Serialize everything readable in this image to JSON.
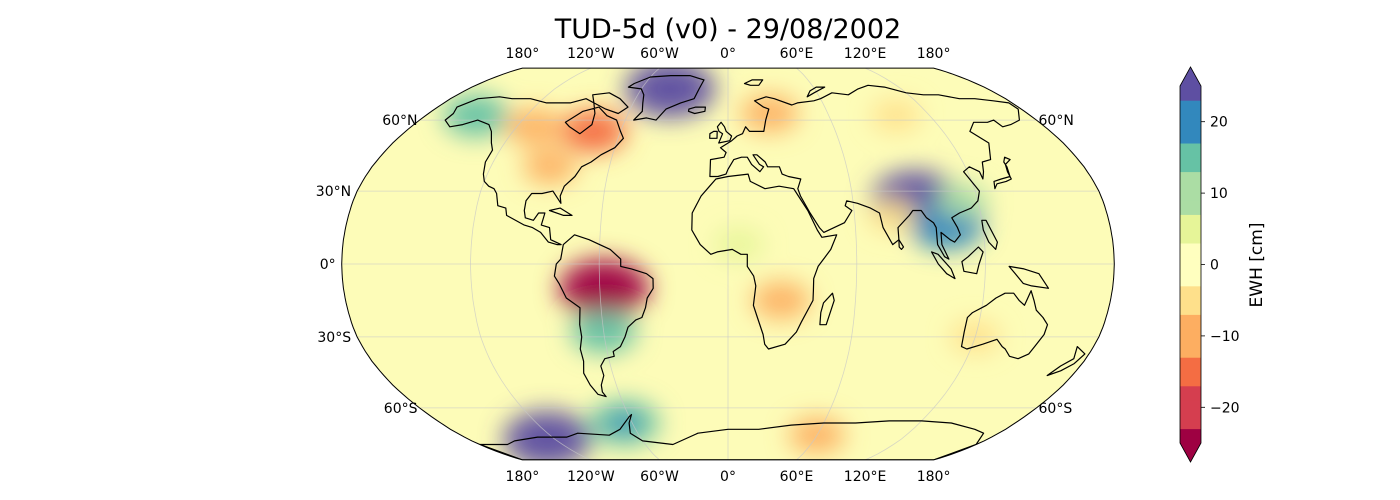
{
  "title": "TUD-5d (v0) - 29/08/2002",
  "map": {
    "projection": "robinson",
    "lon_labels": [
      "180°",
      "120°W",
      "60°W",
      "0°",
      "60°E",
      "120°E",
      "180°"
    ],
    "lat_labels_left": [
      "60°N",
      "30°N",
      "0°",
      "30°S",
      "60°S"
    ],
    "lat_labels_right": [
      "60°N",
      "60°S"
    ],
    "background_color": "#fdfcb8",
    "anomalies": [
      {
        "name": "greenland",
        "lon": -40,
        "lat": 75,
        "value": 25
      },
      {
        "name": "alaska",
        "lon": -150,
        "lat": 62,
        "value": 14
      },
      {
        "name": "canada-east",
        "lon": -75,
        "lat": 55,
        "value": -14
      },
      {
        "name": "canada-west",
        "lon": -110,
        "lat": 57,
        "value": -10
      },
      {
        "name": "us-midwest",
        "lon": -90,
        "lat": 40,
        "value": -8
      },
      {
        "name": "scandinavia",
        "lon": 25,
        "lat": 63,
        "value": -10
      },
      {
        "name": "siberia",
        "lon": 100,
        "lat": 62,
        "value": -6
      },
      {
        "name": "himalaya",
        "lon": 90,
        "lat": 27,
        "value": 23
      },
      {
        "name": "southeast-asia",
        "lon": 103,
        "lat": 16,
        "value": 18
      },
      {
        "name": "southeast-china",
        "lon": 112,
        "lat": 26,
        "value": 8
      },
      {
        "name": "amazon",
        "lon": -58,
        "lat": -10,
        "value": -25
      },
      {
        "name": "la-plata",
        "lon": -60,
        "lat": -28,
        "value": 14
      },
      {
        "name": "southern-africa",
        "lon": 25,
        "lat": -15,
        "value": -10
      },
      {
        "name": "west-africa",
        "lon": 5,
        "lat": 8,
        "value": 6
      },
      {
        "name": "india",
        "lon": 78,
        "lat": 20,
        "value": -6
      },
      {
        "name": "west-antarctica",
        "lon": -125,
        "lat": -75,
        "value": 24
      },
      {
        "name": "antarctic-peninsula",
        "lon": -65,
        "lat": -67,
        "value": 16
      },
      {
        "name": "east-antarctica",
        "lon": 60,
        "lat": -73,
        "value": -9
      },
      {
        "name": "australia-west",
        "lon": 120,
        "lat": -30,
        "value": -6
      }
    ]
  },
  "colorbar": {
    "label": "EWH [cm]",
    "min": -25,
    "max": 25,
    "ticks": [
      -20,
      -10,
      0,
      10,
      20
    ],
    "tick_labels": [
      "−20",
      "−10",
      "0",
      "10",
      "20"
    ],
    "colormap": "Spectral",
    "extend": "both",
    "colors": [
      "#9e0142",
      "#d53e4f",
      "#f46d43",
      "#fdae61",
      "#fee08b",
      "#ffffbf",
      "#e6f598",
      "#abdda4",
      "#66c2a5",
      "#3288bd",
      "#5e4fa2"
    ]
  }
}
